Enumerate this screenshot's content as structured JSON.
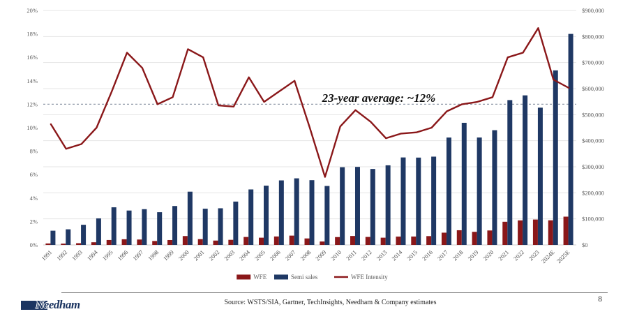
{
  "chart_data": {
    "type": "combo",
    "title": "",
    "categories": [
      "1991",
      "1992",
      "1993",
      "1994",
      "1995",
      "1996",
      "1997",
      "1998",
      "1999",
      "2000",
      "2001",
      "2002",
      "2003",
      "2004",
      "2005",
      "2006",
      "2007",
      "2008",
      "2009",
      "2010",
      "2011",
      "2012",
      "2013",
      "2014",
      "2015",
      "2016",
      "2017",
      "2018",
      "2019",
      "2020",
      "2021",
      "2022",
      "2023",
      "2024E",
      "2025E"
    ],
    "series": [
      {
        "name": "WFE",
        "type": "bar",
        "axis": "right",
        "color": "#8A1719",
        "values": [
          5600,
          4900,
          6600,
          10200,
          18900,
          21700,
          20700,
          15100,
          18800,
          34100,
          22200,
          16700,
          19600,
          30500,
          27800,
          32400,
          35800,
          24900,
          13100,
          30100,
          34400,
          30600,
          27800,
          31900,
          32200,
          33900,
          47000,
          56300,
          50300,
          55500,
          88900,
          94200,
          97500,
          94500,
          108500
        ]
      },
      {
        "name": "Semi sales",
        "type": "bar",
        "axis": "right",
        "color": "#1F3864",
        "values": [
          54600,
          59900,
          77300,
          101900,
          144400,
          132000,
          137200,
          125600,
          149400,
          204400,
          139000,
          140700,
          166400,
          213000,
          227500,
          247700,
          255600,
          248600,
          226300,
          298300,
          299500,
          291600,
          305600,
          335800,
          335200,
          338900,
          412200,
          468800,
          412300,
          440400,
          555900,
          574100,
          526900,
          670000,
          810000
        ]
      },
      {
        "name": "WFE Intensity",
        "type": "line",
        "axis": "left",
        "color": "#8A1719",
        "values": [
          10.3,
          8.2,
          8.6,
          10.0,
          13.1,
          16.4,
          15.1,
          12.0,
          12.6,
          16.7,
          16.0,
          11.9,
          11.8,
          14.3,
          12.2,
          13.1,
          14.0,
          10.0,
          5.8,
          10.1,
          11.5,
          10.5,
          9.1,
          9.5,
          9.6,
          10.0,
          11.4,
          12.0,
          12.2,
          12.6,
          16.0,
          16.4,
          18.5,
          14.1,
          13.4
        ]
      }
    ],
    "left_axis": {
      "min": 0,
      "max": 20,
      "ticks": [
        "0%",
        "2%",
        "4%",
        "6%",
        "8%",
        "10%",
        "12%",
        "14%",
        "16%",
        "18%",
        "20%"
      ]
    },
    "right_axis": {
      "min": 0,
      "max": 900000,
      "ticks": [
        "$0",
        "$100,000",
        "$200,000",
        "$300,000",
        "$400,000",
        "$500,000",
        "$600,000",
        "$700,000",
        "$800,000",
        "$900,000"
      ]
    },
    "average_line": {
      "value": 12,
      "label": "23-year average: ~12%"
    },
    "legend": [
      {
        "label": "WFE",
        "swatch": "bar",
        "color": "#8A1719"
      },
      {
        "label": "Semi sales",
        "swatch": "bar",
        "color": "#1F3864"
      },
      {
        "label": "WFE Intensity",
        "swatch": "line",
        "color": "#8A1719"
      }
    ],
    "grid": true,
    "legend_position": "bottom"
  },
  "footer": {
    "logo_text": "Needham",
    "source": "Source: WSTS/SIA, Gartner, TechInsights, Needham & Company estimates",
    "page_number": "8"
  },
  "colors": {
    "brand_navy": "#1c3561",
    "bar_red": "#8A1719",
    "bar_blue": "#1F3864",
    "dashed_line": "#9099a8",
    "gridline": "#e4e4e4"
  }
}
